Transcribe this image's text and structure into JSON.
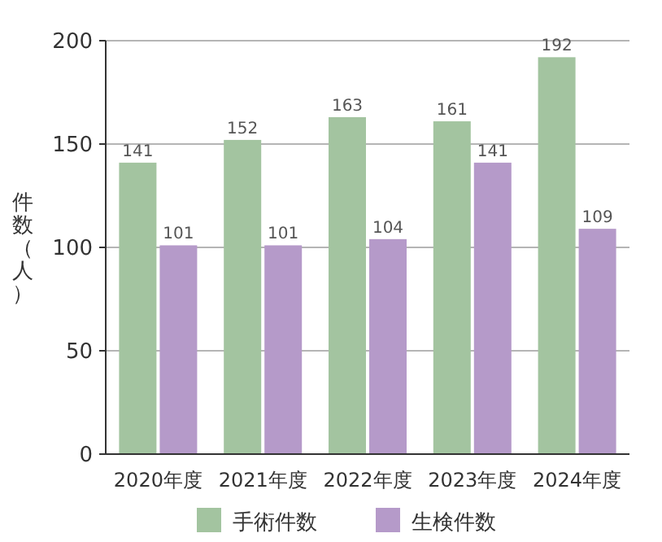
{
  "chart_data": {
    "type": "bar",
    "ylabel": "件数（人）",
    "categories": [
      "2020年度",
      "2021年度",
      "2022年度",
      "2023年度",
      "2024年度"
    ],
    "series": [
      {
        "name": "手術件数",
        "color": "#a3c4a0",
        "values": [
          141,
          152,
          163,
          161,
          192
        ]
      },
      {
        "name": "生検件数",
        "color": "#b59ac9",
        "values": [
          101,
          101,
          104,
          141,
          109
        ]
      }
    ],
    "ylim": [
      0,
      200
    ],
    "yticks": [
      0,
      50,
      100,
      150,
      200
    ],
    "grid": "y",
    "legend": "bottom",
    "data_labels": true
  }
}
